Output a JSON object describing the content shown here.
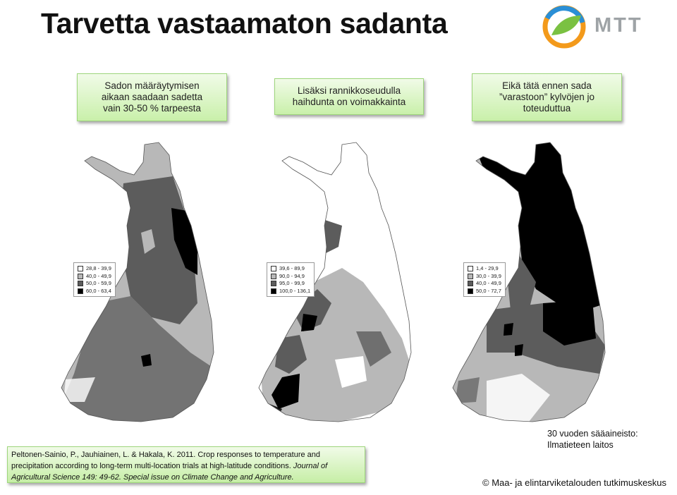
{
  "title": "Tarvetta vastaamaton sadanta",
  "logo": {
    "text": "MTT"
  },
  "boxes": [
    {
      "lines": [
        "Sadon määräytymisen",
        "aikaan saadaan sadetta",
        "vain 30-50 % tarpeesta"
      ]
    },
    {
      "lines": [
        "Lisäksi rannikkoseudulla",
        "haihdunta on voimakkainta"
      ]
    },
    {
      "lines": [
        "Eikä tätä ennen sada",
        "”varastoon” kylvöjen jo",
        "toteuduttua"
      ]
    }
  ],
  "maps": [
    {
      "legend": [
        {
          "label": "28,8 - 39,9",
          "color": "#ffffff"
        },
        {
          "label": "40,0 - 49,9",
          "color": "#b8b8b8"
        },
        {
          "label": "50,0 - 59,9",
          "color": "#5c5c5c"
        },
        {
          "label": "60,0 - 63,4",
          "color": "#000000"
        }
      ]
    },
    {
      "legend": [
        {
          "label": "39,6 -  89,9",
          "color": "#ffffff"
        },
        {
          "label": "90,0 -  94,9",
          "color": "#b8b8b8"
        },
        {
          "label": "95,0 -  99,9",
          "color": "#5c5c5c"
        },
        {
          "label": "100,0 - 136,1",
          "color": "#000000"
        }
      ]
    },
    {
      "legend": [
        {
          "label": "1,4 - 29,9",
          "color": "#ffffff"
        },
        {
          "label": "30,0 - 39,9",
          "color": "#b8b8b8"
        },
        {
          "label": "40,0 - 49,9",
          "color": "#5c5c5c"
        },
        {
          "label": "50,0 - 72,7",
          "color": "#000000"
        }
      ]
    }
  ],
  "reference": {
    "normal": "Peltonen-Sainio, P., Jauhiainen, L. & Hakala, K. 2011. Crop responses to temperature and precipitation according to long-term multi-location trials at high-latitude conditions. ",
    "italic": "Journal of Agricultural Science 149: 49-62. Special issue on Climate Change and Agriculture."
  },
  "source": {
    "line1": "30 vuoden sääaineisto:",
    "line2": "Ilmatieteen laitos"
  },
  "copyright": "© Maa- ja elintarviketalouden tutkimuskeskus"
}
